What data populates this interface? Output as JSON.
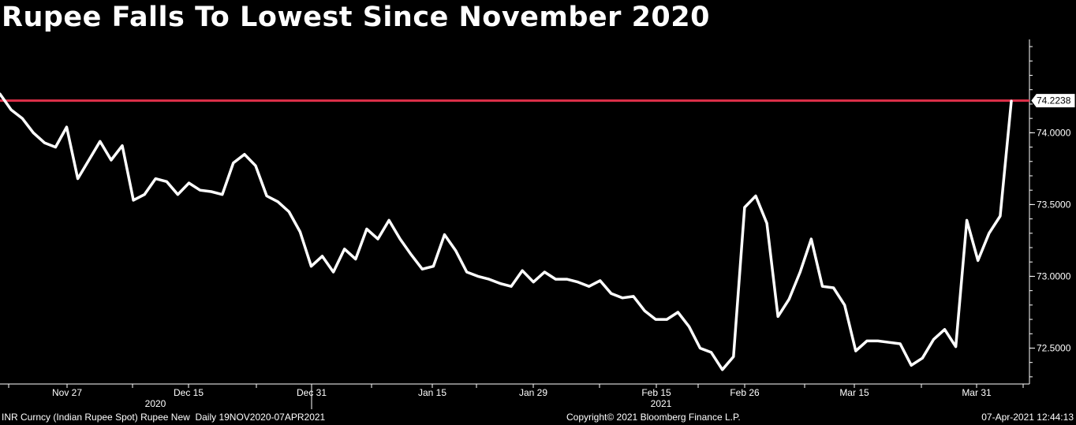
{
  "title": "Rupee Falls To Lowest Since November 2020",
  "footer": {
    "left": "INR Curncy (Indian Rupee Spot) Rupee New  Daily 19NOV2020-07APR2021",
    "center": "Copyright© 2021 Bloomberg Finance L.P.",
    "right": "07-Apr-2021 12:44:13"
  },
  "colors": {
    "background": "#000000",
    "line": "#ffffff",
    "reference_line": "#e0304a",
    "axis": "#ffffff"
  },
  "chart_data": {
    "type": "line",
    "title": "Rupee Falls To Lowest Since November 2020",
    "xlabel": "",
    "ylabel": "",
    "ylim": [
      72.25,
      74.65
    ],
    "yticks": [
      "72.5000",
      "73.0000",
      "73.5000",
      "74.0000"
    ],
    "ytick_values": [
      72.5,
      73.0,
      73.5,
      74.0
    ],
    "last_value_label": "74.2238",
    "reference_line": 74.2238,
    "xtick_labels": [
      "Nov 27",
      "Dec 15",
      "Dec 31",
      "Jan 15",
      "Jan 29",
      "Feb 15",
      "Feb 26",
      "Mar 15",
      "Mar 31"
    ],
    "year_labels": [
      "2020",
      "2021"
    ],
    "grid": false,
    "series": [
      {
        "values": [
          74.27,
          74.16,
          74.1,
          74.0,
          73.93,
          73.9,
          74.04,
          73.68,
          73.81,
          73.94,
          73.81,
          73.91,
          73.53,
          73.57,
          73.68,
          73.66,
          73.57,
          73.65,
          73.6,
          73.59,
          73.57,
          73.79,
          73.85,
          73.77,
          73.56,
          73.52,
          73.45,
          73.31,
          73.07,
          73.14,
          73.03,
          73.19,
          73.12,
          73.33,
          73.26,
          73.39,
          73.26,
          73.15,
          73.05,
          73.07,
          73.29,
          73.18,
          73.03,
          73.0,
          72.98,
          72.95,
          72.93,
          73.04,
          72.96,
          73.03,
          72.98,
          72.98,
          72.96,
          72.93,
          72.97,
          72.88,
          72.85,
          72.86,
          72.76,
          72.7,
          72.7,
          72.75,
          72.65,
          72.5,
          72.47,
          72.35,
          72.44,
          73.48,
          73.56,
          73.37,
          72.72,
          72.84,
          73.03,
          73.26,
          72.93,
          72.92,
          72.8,
          72.48,
          72.55,
          72.55,
          72.54,
          72.53,
          72.38,
          72.43,
          72.56,
          72.63,
          72.51,
          73.39,
          73.11,
          73.3,
          73.42,
          74.22
        ]
      }
    ]
  }
}
